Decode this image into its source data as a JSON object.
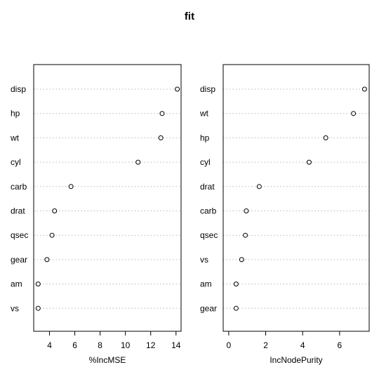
{
  "chart_data": {
    "type": "scatter",
    "title": "fit",
    "panels": [
      {
        "xlabel": "%IncMSE",
        "xlim": [
          2.75,
          14.4
        ],
        "xticks": [
          4,
          6,
          8,
          10,
          12,
          14
        ],
        "categories": [
          "disp",
          "hp",
          "wt",
          "cyl",
          "carb",
          "drat",
          "qsec",
          "gear",
          "am",
          "vs"
        ],
        "values": [
          14.1,
          12.9,
          12.8,
          11.0,
          5.7,
          4.4,
          4.2,
          3.8,
          3.1,
          3.1
        ],
        "grid_lines": "horizontal dotted",
        "marker": "open circle"
      },
      {
        "xlabel": "IncNodePurity",
        "xlim": [
          -0.3,
          7.6
        ],
        "xticks": [
          0,
          2,
          4,
          6
        ],
        "categories": [
          "disp",
          "wt",
          "hp",
          "cyl",
          "drat",
          "carb",
          "qsec",
          "vs",
          "am",
          "gear"
        ],
        "values": [
          7.35,
          6.75,
          5.25,
          4.35,
          1.65,
          0.95,
          0.9,
          0.7,
          0.4,
          0.4
        ],
        "grid_lines": "horizontal dotted",
        "marker": "open circle"
      }
    ]
  }
}
